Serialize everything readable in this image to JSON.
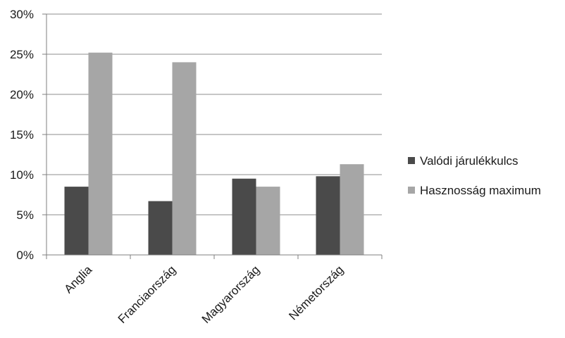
{
  "chart_data": {
    "type": "bar",
    "categories": [
      "Anglia",
      "Franciaország",
      "Magyarország",
      "Németország"
    ],
    "series": [
      {
        "name": "Valódi járulékkulcs",
        "values": [
          8.5,
          6.7,
          9.5,
          9.8
        ],
        "color": "#4a4a4a"
      },
      {
        "name": "Hasznosság maximum",
        "values": [
          25.2,
          24.0,
          8.5,
          11.3
        ],
        "color": "#a6a6a6"
      }
    ],
    "y_ticks": [
      "0%",
      "5%",
      "10%",
      "15%",
      "20%",
      "25%",
      "30%"
    ],
    "ylim": [
      0,
      30
    ],
    "y_unit": "%",
    "grid": true,
    "legend_position": "right"
  }
}
